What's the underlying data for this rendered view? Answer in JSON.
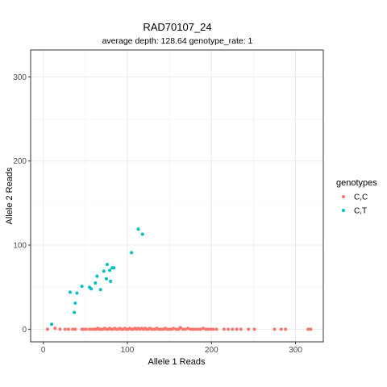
{
  "chart_data": {
    "type": "scatter",
    "title": "RAD70107_24",
    "subtitle": "average depth:  128.64  genotype_rate:  1",
    "xlabel": "Allele 1 Reads",
    "ylabel": "Allele 2 Reads",
    "xlim": [
      -15,
      333
    ],
    "ylim": [
      -15,
      332
    ],
    "xticks": [
      0,
      100,
      200,
      300
    ],
    "yticks": [
      0,
      100,
      200,
      300
    ],
    "grid": true,
    "legend": {
      "title": "genotypes",
      "position": "right"
    },
    "series": [
      {
        "name": "C,C",
        "color": "#F8766D",
        "points": [
          [
            5,
            0
          ],
          [
            14,
            1
          ],
          [
            20,
            0
          ],
          [
            26,
            0
          ],
          [
            30,
            0
          ],
          [
            35,
            0
          ],
          [
            38,
            0
          ],
          [
            46,
            0
          ],
          [
            48,
            0
          ],
          [
            51,
            0
          ],
          [
            55,
            0
          ],
          [
            58,
            0
          ],
          [
            61,
            0
          ],
          [
            63,
            0
          ],
          [
            65,
            1
          ],
          [
            67,
            0
          ],
          [
            69,
            0
          ],
          [
            71,
            0
          ],
          [
            73,
            1
          ],
          [
            75,
            0
          ],
          [
            77,
            0
          ],
          [
            79,
            1
          ],
          [
            81,
            0
          ],
          [
            83,
            0
          ],
          [
            85,
            1
          ],
          [
            87,
            0
          ],
          [
            89,
            0
          ],
          [
            91,
            1
          ],
          [
            93,
            0
          ],
          [
            95,
            0
          ],
          [
            97,
            1
          ],
          [
            99,
            0
          ],
          [
            101,
            0
          ],
          [
            103,
            1
          ],
          [
            105,
            0
          ],
          [
            107,
            0
          ],
          [
            109,
            1
          ],
          [
            111,
            0
          ],
          [
            113,
            1
          ],
          [
            115,
            0
          ],
          [
            117,
            1
          ],
          [
            119,
            0
          ],
          [
            121,
            1
          ],
          [
            123,
            0
          ],
          [
            125,
            0
          ],
          [
            127,
            1
          ],
          [
            129,
            0
          ],
          [
            131,
            0
          ],
          [
            133,
            0
          ],
          [
            135,
            1
          ],
          [
            137,
            0
          ],
          [
            139,
            0
          ],
          [
            141,
            0
          ],
          [
            143,
            0
          ],
          [
            145,
            1
          ],
          [
            147,
            0
          ],
          [
            149,
            0
          ],
          [
            151,
            0
          ],
          [
            153,
            0
          ],
          [
            155,
            1
          ],
          [
            158,
            0
          ],
          [
            161,
            0
          ],
          [
            163,
            2
          ],
          [
            166,
            0
          ],
          [
            169,
            0
          ],
          [
            172,
            1
          ],
          [
            175,
            0
          ],
          [
            178,
            0
          ],
          [
            181,
            0
          ],
          [
            184,
            0
          ],
          [
            187,
            0
          ],
          [
            190,
            1
          ],
          [
            193,
            0
          ],
          [
            196,
            0
          ],
          [
            199,
            0
          ],
          [
            202,
            0
          ],
          [
            206,
            0
          ],
          [
            215,
            0
          ],
          [
            220,
            0
          ],
          [
            225,
            0
          ],
          [
            230,
            0
          ],
          [
            235,
            0
          ],
          [
            244,
            0
          ],
          [
            251,
            0
          ],
          [
            275,
            0
          ],
          [
            283,
            0
          ],
          [
            288,
            0
          ],
          [
            315,
            0
          ],
          [
            318,
            0
          ]
        ]
      },
      {
        "name": "C,T",
        "color": "#00BFC4",
        "points": [
          [
            10,
            6
          ],
          [
            32,
            44
          ],
          [
            37,
            20
          ],
          [
            38,
            31
          ],
          [
            40,
            43
          ],
          [
            46,
            51
          ],
          [
            55,
            50
          ],
          [
            57,
            48
          ],
          [
            62,
            55
          ],
          [
            64,
            63
          ],
          [
            68,
            47
          ],
          [
            72,
            69
          ],
          [
            75,
            60
          ],
          [
            76,
            77
          ],
          [
            79,
            70
          ],
          [
            80,
            57
          ],
          [
            82,
            73
          ],
          [
            84,
            73
          ],
          [
            105,
            91
          ],
          [
            113,
            119
          ],
          [
            118,
            113
          ]
        ]
      }
    ]
  }
}
